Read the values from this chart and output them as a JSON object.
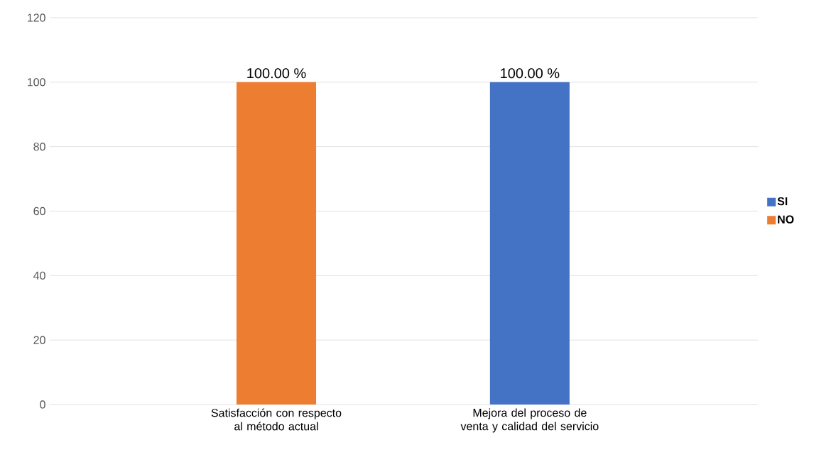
{
  "chart_data": {
    "type": "bar",
    "stacked": true,
    "categories": [
      "Satisfacción con respecto al método actual",
      "Mejora del proceso de venta y calidad del servicio"
    ],
    "series": [
      {
        "name": "SI",
        "color": "#4472c4",
        "values": [
          0,
          100
        ],
        "value_labels": [
          null,
          "100.00 %"
        ]
      },
      {
        "name": "NO",
        "color": "#ed7d31",
        "values": [
          100,
          0
        ],
        "value_labels": [
          "100.00 %",
          null
        ]
      }
    ],
    "ylim": [
      0,
      120
    ],
    "yticks": [
      0,
      20,
      40,
      60,
      80,
      100,
      120
    ],
    "grid": "y",
    "legend": "right"
  }
}
